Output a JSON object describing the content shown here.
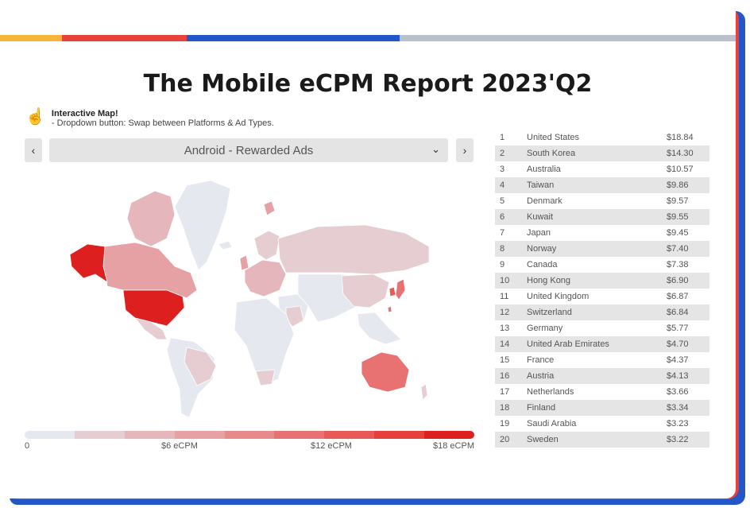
{
  "title": "The Mobile eCPM Report 2023'Q2",
  "hint": {
    "icon": "hand-pointer-icon",
    "heading": "Interactive Map!",
    "text": "- Dropdown button: Swap between Platforms & Ad Types."
  },
  "nav": {
    "prev_icon": "‹",
    "next_icon": "›"
  },
  "dropdown": {
    "selected": "Android - Rewarded Ads",
    "chevron": "⌄"
  },
  "colors": {
    "top_stripe": [
      "#f5b43a",
      "#e8403a",
      "#2356c6",
      "#b9bfcc"
    ],
    "shadow_red": "#e8403a",
    "shadow_blue": "#2356c6",
    "scale": [
      "#e5e8ef",
      "#e6cdd2",
      "#e5b6bb",
      "#e5a1a4",
      "#e68a8b",
      "#e87271",
      "#e85a57",
      "#e6403d",
      "#de1f1f"
    ]
  },
  "scale_labels": {
    "min": "0",
    "l1": "$6 eCPM",
    "l2": "$12 eCPM",
    "l3": "$18 eCPM"
  },
  "ranking": [
    {
      "rank": "1",
      "country": "United States",
      "value": "$18.84"
    },
    {
      "rank": "2",
      "country": "South Korea",
      "value": "$14.30"
    },
    {
      "rank": "3",
      "country": "Australia",
      "value": "$10.57"
    },
    {
      "rank": "4",
      "country": "Taiwan",
      "value": "$9.86"
    },
    {
      "rank": "5",
      "country": "Denmark",
      "value": "$9.57"
    },
    {
      "rank": "6",
      "country": "Kuwait",
      "value": "$9.55"
    },
    {
      "rank": "7",
      "country": "Japan",
      "value": "$9.45"
    },
    {
      "rank": "8",
      "country": "Norway",
      "value": "$7.40"
    },
    {
      "rank": "9",
      "country": "Canada",
      "value": "$7.38"
    },
    {
      "rank": "10",
      "country": "Hong Kong",
      "value": "$6.90"
    },
    {
      "rank": "11",
      "country": "United Kingdom",
      "value": "$6.87"
    },
    {
      "rank": "12",
      "country": "Switzerland",
      "value": "$6.84"
    },
    {
      "rank": "13",
      "country": "Germany",
      "value": "$5.77"
    },
    {
      "rank": "14",
      "country": "United Arab Emirates",
      "value": "$4.70"
    },
    {
      "rank": "15",
      "country": "France",
      "value": "$4.37"
    },
    {
      "rank": "16",
      "country": "Austria",
      "value": "$4.13"
    },
    {
      "rank": "17",
      "country": "Netherlands",
      "value": "$3.66"
    },
    {
      "rank": "18",
      "country": "Finland",
      "value": "$3.34"
    },
    {
      "rank": "19",
      "country": "Saudi Arabia",
      "value": "$3.23"
    },
    {
      "rank": "20",
      "country": "Sweden",
      "value": "$3.22"
    }
  ]
}
